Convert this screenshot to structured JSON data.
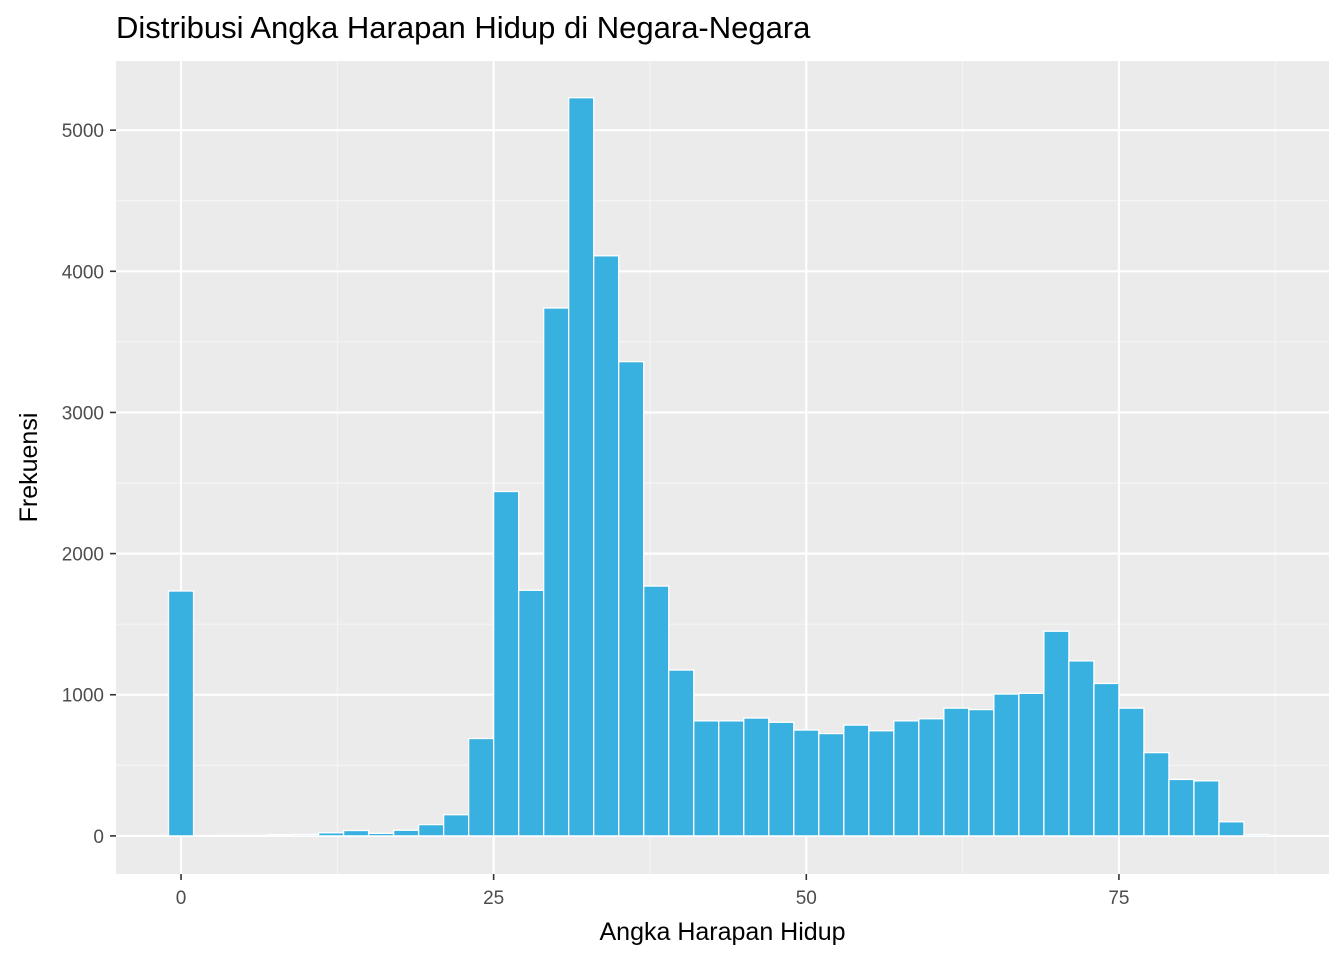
{
  "chart_data": {
    "type": "bar",
    "title": "Distribusi Angka Harapan Hidup di Negara-Negara",
    "xlabel": "Angka Harapan Hidup",
    "ylabel": "Frekuensi",
    "bin_width": 2,
    "bin_centers": [
      0,
      2,
      4,
      6,
      8,
      10,
      12,
      14,
      16,
      18,
      20,
      22,
      24,
      26,
      28,
      30,
      32,
      34,
      36,
      38,
      40,
      42,
      44,
      46,
      48,
      50,
      52,
      54,
      56,
      58,
      60,
      62,
      64,
      66,
      68,
      70,
      72,
      74,
      76,
      78,
      80,
      82,
      84,
      86
    ],
    "values": [
      1735,
      2,
      3,
      4,
      8,
      10,
      22,
      38,
      18,
      40,
      80,
      150,
      690,
      2440,
      1740,
      3740,
      5230,
      4110,
      3360,
      1770,
      1175,
      815,
      815,
      835,
      805,
      750,
      725,
      785,
      745,
      815,
      830,
      905,
      895,
      1005,
      1010,
      1450,
      1240,
      1080,
      905,
      590,
      400,
      390,
      100,
      10
    ],
    "xlim": [
      -5.2,
      91.8
    ],
    "ylim": [
      -270,
      5490
    ],
    "xticks": [
      0,
      25,
      50,
      75
    ],
    "yticks": [
      0,
      1000,
      2000,
      3000,
      4000,
      5000
    ],
    "grid": true,
    "legend": "none",
    "colors": {
      "bar_fill": "#38B0E0",
      "bar_outline": "#FFFFFF",
      "panel_background": "#EBEBEB",
      "grid_major": "#FFFFFF",
      "grid_minor": "#F5F5F5"
    }
  }
}
